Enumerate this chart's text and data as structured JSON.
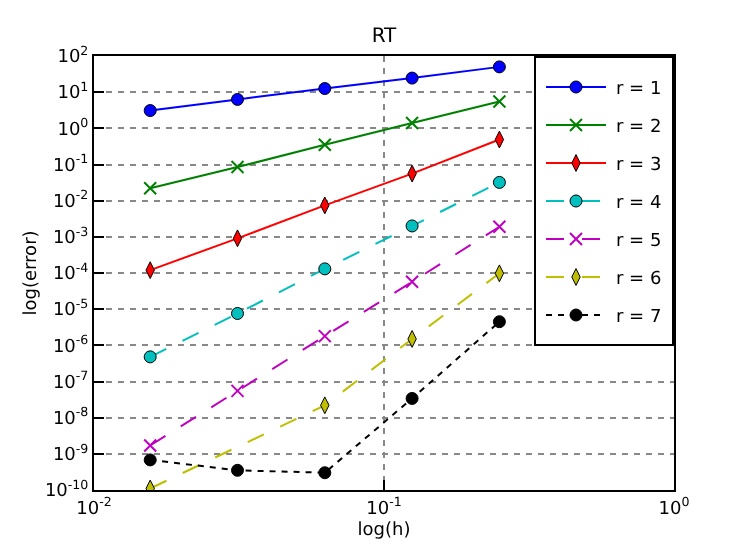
{
  "chart_data": {
    "type": "line",
    "title": "RT",
    "xlabel": "log(h)",
    "ylabel": "log(error)",
    "x": [
      0.015625,
      0.03125,
      0.0625,
      0.125,
      0.25
    ],
    "log": "xy",
    "grid": true,
    "legend": "top right",
    "xlim": [
      0.01,
      1
    ],
    "ylim": [
      1e-10,
      100
    ],
    "xticks": [
      {
        "value": 0.01,
        "label": "10$^{-2}$"
      },
      {
        "value": 0.1,
        "label": "10$^{-1}$"
      },
      {
        "value": 1,
        "label": "10$^{0}$"
      }
    ],
    "yticks": [
      {
        "value": 1e-10,
        "label": "10$^{-10}$"
      },
      {
        "value": 1e-09,
        "label": "10$^{-9}$"
      },
      {
        "value": 1e-08,
        "label": "10$^{-8}$"
      },
      {
        "value": 1e-07,
        "label": "10$^{-7}$"
      },
      {
        "value": 1e-06,
        "label": "10$^{-6}$"
      },
      {
        "value": 1e-05,
        "label": "10$^{-5}$"
      },
      {
        "value": 0.0001,
        "label": "10$^{-4}$"
      },
      {
        "value": 0.001,
        "label": "10$^{-3}$"
      },
      {
        "value": 0.01,
        "label": "10$^{-2}$"
      },
      {
        "value": 0.1,
        "label": "10$^{-1}$"
      },
      {
        "value": 1,
        "label": "10$^{0}$"
      },
      {
        "value": 10,
        "label": "10$^{1}$"
      },
      {
        "value": 100,
        "label": "10$^{2}$"
      }
    ],
    "series": [
      {
        "name": "r = 1",
        "color": "#0000ff",
        "marker": "circle",
        "line_style": "solid",
        "values": [
          3.1,
          6.3,
          12.6,
          24.5,
          50
        ]
      },
      {
        "name": "r = 2",
        "color": "#008000",
        "marker": "cross",
        "line_style": "solid",
        "values": [
          0.022,
          0.085,
          0.35,
          1.4,
          5.5
        ]
      },
      {
        "name": "r = 3",
        "color": "#ff0000",
        "marker": "diamond",
        "line_style": "solid",
        "values": [
          0.00012,
          0.00091,
          0.0074,
          0.056,
          0.49
        ]
      },
      {
        "name": "r = 4",
        "color": "#00bfbf",
        "marker": "circle",
        "line_style": "dashed",
        "values": [
          4.8e-07,
          7.6e-06,
          0.00013,
          0.002,
          0.032
        ]
      },
      {
        "name": "r = 5",
        "color": "#bf00bf",
        "marker": "cross",
        "line_style": "dashed",
        "values": [
          1.7e-09,
          5.5e-08,
          1.8e-06,
          5.7e-05,
          0.0019
        ]
      },
      {
        "name": "r = 6",
        "color": "#bfbf00",
        "marker": "diamond",
        "line_style": "dashed",
        "values": [
          1.1e-10,
          null,
          2.2e-08,
          1.5e-06,
          9.8e-05
        ]
      },
      {
        "name": "r = 7",
        "color": "#000000",
        "marker": "circle",
        "line_style": "dotted",
        "values": [
          6.8e-10,
          3.5e-10,
          3e-10,
          3.4e-08,
          4.5e-06
        ]
      }
    ]
  }
}
